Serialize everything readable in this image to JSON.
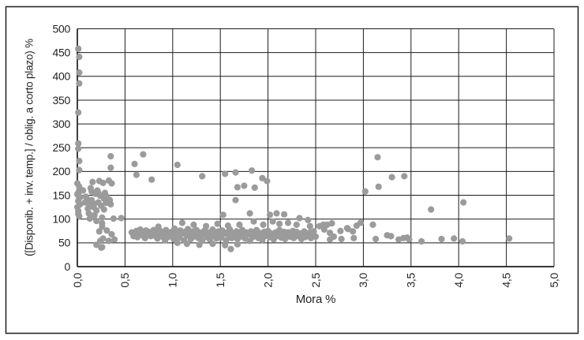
{
  "figure": {
    "background": "#ffffff",
    "border_color": "#2a2a2a",
    "grid_color": "#1c1c1c",
    "text_color": "#231f20"
  },
  "chart_data": {
    "type": "scatter",
    "title": "",
    "xlabel": "Mora %",
    "ylabel": "([Disponib. + inv. temp.] / oblig. a corto plazo) %",
    "xlim": [
      0,
      5
    ],
    "ylim": [
      0,
      500
    ],
    "grid": true,
    "legend": "none",
    "x_tick_labels": [
      "0,0",
      "0,5",
      "1,0",
      "1,5",
      "2,0",
      "2,5",
      "3,0",
      "3,5",
      "4,0",
      "4,5",
      "5,0"
    ],
    "y_tick_labels": [
      "0",
      "50",
      "100",
      "150",
      "200",
      "250",
      "300",
      "350",
      "400",
      "450",
      "500"
    ],
    "marker": {
      "shape": "circle",
      "color": "#9b9b9b",
      "radius_px": 4.1
    },
    "points": [
      [
        0.01,
        458
      ],
      [
        0.02,
        441
      ],
      [
        0.02,
        408
      ],
      [
        0.02,
        385
      ],
      [
        0.01,
        324
      ],
      [
        0.01,
        259
      ],
      [
        0.01,
        248
      ],
      [
        0.02,
        222
      ],
      [
        0.02,
        203
      ],
      [
        0.0,
        175
      ],
      [
        0.02,
        168
      ],
      [
        0.0,
        152
      ],
      [
        0.01,
        138
      ],
      [
        0.0,
        125
      ],
      [
        0.01,
        117
      ],
      [
        0.02,
        106
      ],
      [
        0.03,
        131
      ],
      [
        0.02,
        160
      ],
      [
        0.03,
        146
      ],
      [
        0.01,
        111
      ],
      [
        0.02,
        144
      ],
      [
        0.01,
        155
      ],
      [
        0.06,
        160
      ],
      [
        0.08,
        135
      ],
      [
        0.09,
        147
      ],
      [
        0.1,
        143
      ],
      [
        0.11,
        122
      ],
      [
        0.12,
        112
      ],
      [
        0.13,
        101
      ],
      [
        0.13,
        131
      ],
      [
        0.14,
        165
      ],
      [
        0.15,
        158
      ],
      [
        0.16,
        178
      ],
      [
        0.17,
        125
      ],
      [
        0.18,
        108
      ],
      [
        0.19,
        153
      ],
      [
        0.2,
        96
      ],
      [
        0.2,
        118
      ],
      [
        0.21,
        160
      ],
      [
        0.22,
        135
      ],
      [
        0.23,
        180
      ],
      [
        0.24,
        149
      ],
      [
        0.25,
        128
      ],
      [
        0.26,
        91
      ],
      [
        0.26,
        103
      ],
      [
        0.27,
        176
      ],
      [
        0.28,
        120
      ],
      [
        0.29,
        155
      ],
      [
        0.3,
        134
      ],
      [
        0.31,
        147
      ],
      [
        0.33,
        181
      ],
      [
        0.34,
        140
      ],
      [
        0.35,
        131
      ],
      [
        0.36,
        175
      ],
      [
        0.38,
        101
      ],
      [
        0.46,
        102
      ],
      [
        0.15,
        140
      ],
      [
        0.18,
        132
      ],
      [
        0.22,
        155
      ],
      [
        0.28,
        143
      ],
      [
        0.2,
        46
      ],
      [
        0.23,
        74
      ],
      [
        0.24,
        54
      ],
      [
        0.25,
        40
      ],
      [
        0.26,
        84
      ],
      [
        0.26,
        41
      ],
      [
        0.27,
        59
      ],
      [
        0.31,
        76
      ],
      [
        0.33,
        54
      ],
      [
        0.36,
        68
      ],
      [
        0.39,
        57
      ],
      [
        0.35,
        232
      ],
      [
        0.35,
        208
      ],
      [
        0.6,
        216
      ],
      [
        0.62,
        193
      ],
      [
        0.69,
        236
      ],
      [
        0.78,
        183
      ],
      [
        1.05,
        214
      ],
      [
        1.31,
        190
      ],
      [
        1.55,
        195
      ],
      [
        1.66,
        198
      ],
      [
        1.83,
        202
      ],
      [
        1.94,
        186
      ],
      [
        1.99,
        180
      ],
      [
        1.68,
        167
      ],
      [
        1.75,
        170
      ],
      [
        1.86,
        166
      ],
      [
        1.66,
        140
      ],
      [
        1.53,
        109
      ],
      [
        1.81,
        112
      ],
      [
        1.85,
        95
      ],
      [
        2.02,
        109
      ],
      [
        2.09,
        112
      ],
      [
        2.17,
        110
      ],
      [
        2.33,
        102
      ],
      [
        2.42,
        98
      ],
      [
        3.15,
        230
      ],
      [
        3.02,
        158
      ],
      [
        3.16,
        168
      ],
      [
        3.3,
        188
      ],
      [
        3.43,
        190
      ],
      [
        3.71,
        120
      ],
      [
        4.05,
        135
      ],
      [
        1.1,
        92
      ],
      [
        0.57,
        72
      ],
      [
        0.59,
        64
      ],
      [
        0.6,
        70
      ],
      [
        0.62,
        75
      ],
      [
        0.63,
        62
      ],
      [
        0.65,
        70
      ],
      [
        0.66,
        78
      ],
      [
        0.68,
        66
      ],
      [
        0.7,
        72
      ],
      [
        0.71,
        60
      ],
      [
        0.72,
        76
      ],
      [
        0.74,
        68
      ],
      [
        0.75,
        73
      ],
      [
        0.77,
        64
      ],
      [
        0.78,
        71
      ],
      [
        0.8,
        77
      ],
      [
        0.81,
        65
      ],
      [
        0.83,
        72
      ],
      [
        0.84,
        59
      ],
      [
        0.85,
        84
      ],
      [
        0.86,
        69
      ],
      [
        0.87,
        75
      ],
      [
        0.89,
        63
      ],
      [
        0.9,
        71
      ],
      [
        0.92,
        55
      ],
      [
        0.92,
        67
      ],
      [
        0.93,
        77
      ],
      [
        0.95,
        62
      ],
      [
        0.96,
        72
      ],
      [
        0.98,
        68
      ],
      [
        1.0,
        74
      ],
      [
        1.01,
        58
      ],
      [
        1.02,
        80
      ],
      [
        1.04,
        66
      ],
      [
        1.05,
        50
      ],
      [
        1.05,
        72
      ],
      [
        1.07,
        61
      ],
      [
        1.08,
        76
      ],
      [
        1.1,
        69
      ],
      [
        1.12,
        55
      ],
      [
        1.13,
        73
      ],
      [
        1.15,
        48
      ],
      [
        1.15,
        65
      ],
      [
        1.16,
        79
      ],
      [
        1.18,
        70
      ],
      [
        1.19,
        58
      ],
      [
        1.21,
        74
      ],
      [
        1.22,
        88
      ],
      [
        1.22,
        63
      ],
      [
        1.24,
        69
      ],
      [
        1.25,
        77
      ],
      [
        1.27,
        60
      ],
      [
        1.28,
        46
      ],
      [
        1.28,
        72
      ],
      [
        1.3,
        66
      ],
      [
        1.31,
        54
      ],
      [
        1.33,
        75
      ],
      [
        1.34,
        68
      ],
      [
        1.35,
        85
      ],
      [
        1.36,
        62
      ],
      [
        1.37,
        72
      ],
      [
        1.39,
        57
      ],
      [
        1.4,
        70
      ],
      [
        1.42,
        48
      ],
      [
        1.42,
        78
      ],
      [
        1.43,
        64
      ],
      [
        1.45,
        71
      ],
      [
        1.46,
        59
      ],
      [
        1.47,
        90
      ],
      [
        1.48,
        74
      ],
      [
        1.49,
        66
      ],
      [
        1.51,
        61
      ],
      [
        1.52,
        76
      ],
      [
        1.54,
        69
      ],
      [
        1.55,
        45
      ],
      [
        1.56,
        55
      ],
      [
        1.57,
        72
      ],
      [
        1.58,
        86
      ],
      [
        1.59,
        65
      ],
      [
        1.6,
        78
      ],
      [
        1.61,
        37
      ],
      [
        1.62,
        60
      ],
      [
        1.63,
        71
      ],
      [
        1.65,
        67
      ],
      [
        1.67,
        74
      ],
      [
        1.68,
        47
      ],
      [
        1.68,
        58
      ],
      [
        1.7,
        88
      ],
      [
        1.7,
        70
      ],
      [
        1.71,
        63
      ],
      [
        1.73,
        77
      ],
      [
        1.74,
        66
      ],
      [
        1.76,
        59
      ],
      [
        1.77,
        72
      ],
      [
        1.79,
        68
      ],
      [
        1.81,
        54
      ],
      [
        1.82,
        74
      ],
      [
        1.84,
        62
      ],
      [
        1.85,
        70
      ],
      [
        1.87,
        65
      ],
      [
        1.88,
        77
      ],
      [
        1.9,
        60
      ],
      [
        1.91,
        71
      ],
      [
        1.93,
        67
      ],
      [
        1.94,
        56
      ],
      [
        1.95,
        88
      ],
      [
        1.96,
        73
      ],
      [
        1.97,
        64
      ],
      [
        1.99,
        69
      ],
      [
        2.0,
        75
      ],
      [
        2.02,
        62
      ],
      [
        2.03,
        70
      ],
      [
        2.05,
        95
      ],
      [
        2.05,
        66
      ],
      [
        2.06,
        57
      ],
      [
        2.08,
        72
      ],
      [
        2.09,
        64
      ],
      [
        2.11,
        70
      ],
      [
        2.12,
        90
      ],
      [
        2.12,
        77
      ],
      [
        2.14,
        61
      ],
      [
        2.15,
        68
      ],
      [
        2.17,
        73
      ],
      [
        2.18,
        58
      ],
      [
        2.2,
        66
      ],
      [
        2.21,
        92
      ],
      [
        2.21,
        72
      ],
      [
        2.23,
        63
      ],
      [
        2.24,
        70
      ],
      [
        2.26,
        75
      ],
      [
        2.27,
        60
      ],
      [
        2.29,
        67
      ],
      [
        2.3,
        88
      ],
      [
        2.3,
        73
      ],
      [
        2.32,
        64
      ],
      [
        2.33,
        70
      ],
      [
        2.35,
        58
      ],
      [
        2.36,
        68
      ],
      [
        2.38,
        74
      ],
      [
        2.39,
        62
      ],
      [
        2.41,
        69
      ],
      [
        2.42,
        65
      ],
      [
        2.44,
        85
      ],
      [
        2.44,
        72
      ],
      [
        2.45,
        60
      ],
      [
        2.47,
        68
      ],
      [
        2.48,
        74
      ],
      [
        2.5,
        63
      ],
      [
        2.54,
        85
      ],
      [
        2.58,
        88
      ],
      [
        2.59,
        78
      ],
      [
        2.62,
        88
      ],
      [
        2.65,
        57
      ],
      [
        2.65,
        71
      ],
      [
        2.67,
        91
      ],
      [
        2.69,
        63
      ],
      [
        2.76,
        75
      ],
      [
        2.77,
        58
      ],
      [
        2.83,
        81
      ],
      [
        2.84,
        79
      ],
      [
        2.89,
        74
      ],
      [
        2.9,
        60
      ],
      [
        2.93,
        86
      ],
      [
        2.97,
        92
      ],
      [
        3.1,
        88
      ],
      [
        3.13,
        58
      ],
      [
        3.25,
        66
      ],
      [
        3.29,
        64
      ],
      [
        3.37,
        57
      ],
      [
        3.42,
        60
      ],
      [
        3.46,
        61
      ],
      [
        3.48,
        57
      ],
      [
        3.61,
        53
      ],
      [
        3.82,
        58
      ],
      [
        3.95,
        59
      ],
      [
        4.04,
        53
      ],
      [
        4.53,
        59
      ]
    ]
  }
}
